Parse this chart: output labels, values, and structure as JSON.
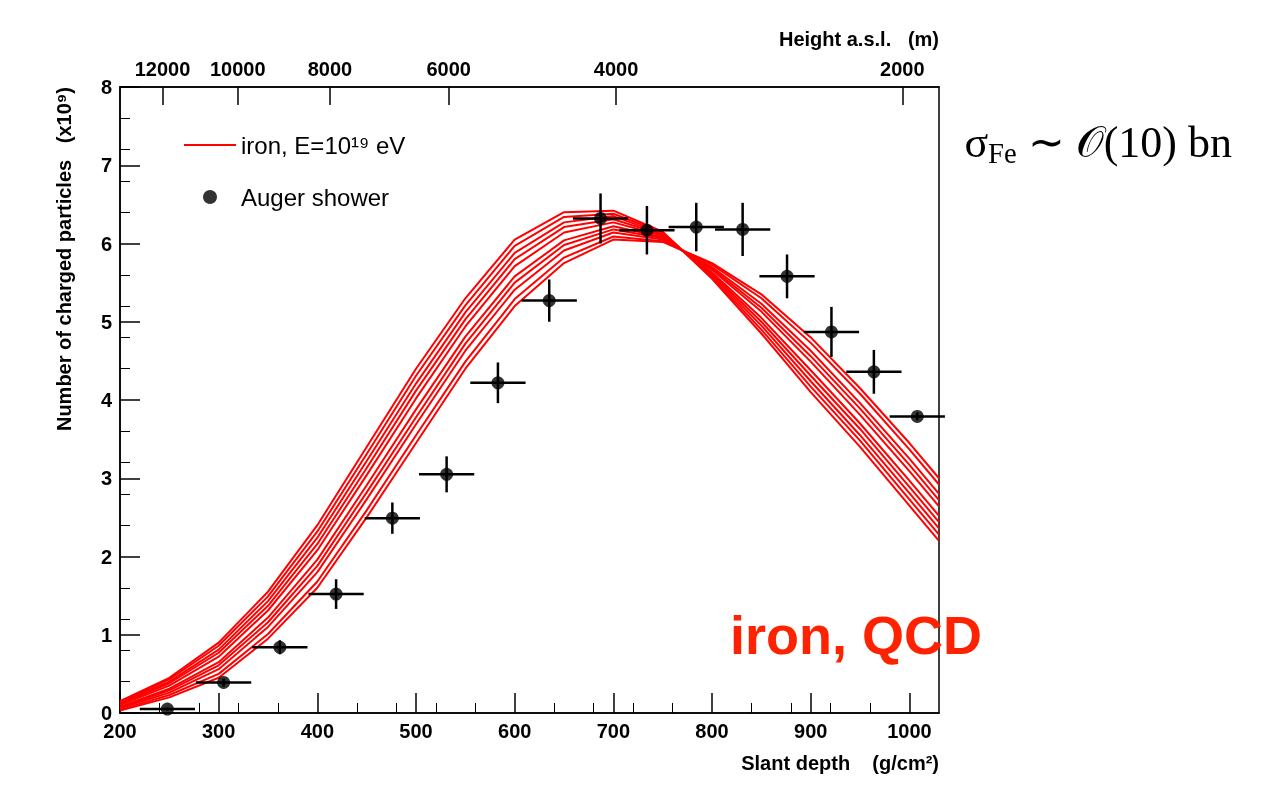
{
  "chart_data": {
    "type": "line",
    "xlabel": "Slant depth    (g/cm²)",
    "ylabel": "Number of charged particles   (x10⁹)",
    "log": "x2",
    "x2label": "Height a.s.l.   (m)",
    "annotations": [
      "σ$_{Fe}$ ∼ 𝒪(10) bn",
      "iron, QCD"
    ],
    "x": [
      200,
      250,
      300,
      350,
      400,
      450,
      500,
      550,
      600,
      650,
      700,
      750,
      800,
      850,
      900,
      950,
      1000,
      1030
    ],
    "xlim": [
      200,
      1030
    ],
    "xticks": [
      200,
      300,
      400,
      500,
      600,
      700,
      800,
      900,
      1000
    ],
    "ylim": [
      0,
      8
    ],
    "yticks": [
      0,
      1,
      2,
      3,
      4,
      5,
      6,
      7,
      8
    ],
    "x2lim": [
      13300,
      1830
    ],
    "x2ticks": [
      12000,
      10000,
      8000,
      6000,
      4000,
      2000
    ],
    "legend": "top left",
    "series": [
      {
        "name": "iron, E=10¹⁹ eV",
        "color": "#ff0000",
        "values": [
          0.15,
          0.45,
          0.9,
          1.55,
          2.4,
          3.4,
          4.4,
          5.3,
          6.05,
          6.4,
          6.42,
          6.15,
          5.55,
          4.85,
          4.1,
          3.4,
          2.65,
          2.2
        ]
      },
      {
        "color": "#ff0000",
        "values": [
          0.14,
          0.43,
          0.86,
          1.49,
          2.32,
          3.31,
          4.31,
          5.21,
          5.97,
          6.34,
          6.38,
          6.14,
          5.57,
          4.9,
          4.17,
          3.48,
          2.73,
          2.28
        ]
      },
      {
        "color": "#ff0000",
        "values": [
          0.13,
          0.4,
          0.81,
          1.43,
          2.24,
          3.22,
          4.21,
          5.12,
          5.88,
          6.27,
          6.35,
          6.12,
          5.59,
          4.95,
          4.24,
          3.55,
          2.81,
          2.36
        ]
      },
      {
        "color": "#ff0000",
        "values": [
          0.11,
          0.38,
          0.77,
          1.37,
          2.16,
          3.13,
          4.12,
          5.03,
          5.8,
          6.21,
          6.31,
          6.11,
          5.61,
          5.0,
          4.31,
          3.63,
          2.89,
          2.44
        ]
      },
      {
        "color": "#ff0000",
        "values": [
          0.1,
          0.35,
          0.72,
          1.31,
          2.08,
          3.04,
          4.02,
          4.94,
          5.71,
          6.14,
          6.27,
          6.1,
          5.63,
          5.05,
          4.38,
          3.7,
          2.97,
          2.52
        ]
      },
      {
        "color": "#ff0000",
        "values": [
          0.08,
          0.31,
          0.65,
          1.22,
          1.96,
          2.91,
          3.88,
          4.81,
          5.58,
          6.04,
          6.22,
          6.08,
          5.66,
          5.13,
          4.49,
          3.81,
          3.09,
          2.64
        ]
      },
      {
        "color": "#ff0000",
        "values": [
          0.07,
          0.29,
          0.61,
          1.16,
          1.88,
          2.82,
          3.78,
          4.72,
          5.5,
          5.98,
          6.18,
          6.07,
          5.68,
          5.18,
          4.56,
          3.89,
          3.17,
          2.72
        ]
      },
      {
        "color": "#ff0000",
        "values": [
          0.06,
          0.26,
          0.56,
          1.1,
          1.8,
          2.73,
          3.69,
          4.63,
          5.41,
          5.91,
          6.14,
          6.05,
          5.7,
          5.23,
          4.63,
          3.96,
          3.25,
          2.8
        ]
      },
      {
        "color": "#ff0000",
        "values": [
          0.04,
          0.23,
          0.5,
          1.01,
          1.68,
          2.59,
          3.55,
          4.49,
          5.29,
          5.82,
          6.09,
          6.03,
          5.73,
          5.3,
          4.73,
          4.08,
          3.37,
          2.92
        ]
      },
      {
        "color": "#ff0000",
        "values": [
          0.03,
          0.2,
          0.45,
          0.95,
          1.6,
          2.5,
          3.45,
          4.4,
          5.2,
          5.75,
          6.05,
          6.02,
          5.75,
          5.35,
          4.8,
          4.15,
          3.45,
          3.0
        ]
      },
      {
        "type": "scatter",
        "name": "Auger shower",
        "color": "#000000",
        "marker": "circle",
        "x": [
          248,
          305,
          362,
          419,
          476,
          531,
          583,
          635,
          687,
          734,
          784,
          831,
          876,
          921,
          964,
          1008
        ],
        "values": [
          0.05,
          0.39,
          0.84,
          1.52,
          2.49,
          3.05,
          4.22,
          5.27,
          6.32,
          6.17,
          6.21,
          6.18,
          5.58,
          4.87,
          4.36,
          3.79
        ],
        "errors": [
          0.02,
          0.05,
          0.09,
          0.19,
          0.2,
          0.23,
          0.26,
          0.27,
          0.32,
          0.31,
          0.31,
          0.34,
          0.28,
          0.32,
          0.28,
          0.05
        ],
        "xerrors": [
          28,
          28,
          28,
          28,
          28,
          28,
          28,
          28,
          28,
          28,
          28,
          28,
          28,
          28,
          28,
          28
        ]
      }
    ]
  }
}
